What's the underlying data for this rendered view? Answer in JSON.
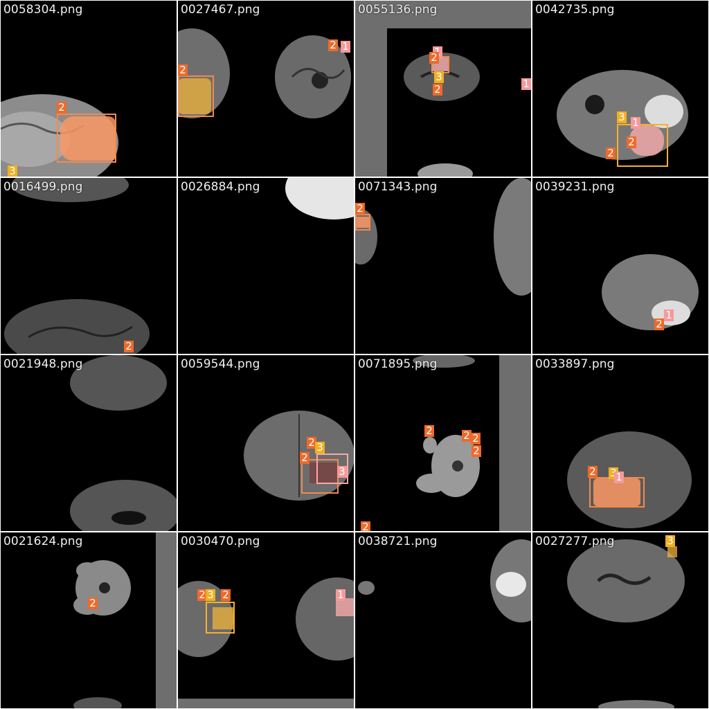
{
  "tiles": [
    {
      "filename": "0058304.png",
      "labels": [
        "2",
        "3",
        "2"
      ]
    },
    {
      "filename": "0027467.png",
      "labels": [
        "2",
        "1",
        "2"
      ]
    },
    {
      "filename": "0055136.png",
      "labels": [
        "1",
        "2",
        "3",
        "2",
        "1"
      ]
    },
    {
      "filename": "0042735.png",
      "labels": [
        "3",
        "1",
        "2",
        "2"
      ]
    },
    {
      "filename": "0016499.png",
      "labels": [
        "2"
      ]
    },
    {
      "filename": "0026884.png",
      "labels": []
    },
    {
      "filename": "0071343.png",
      "labels": [
        "2"
      ]
    },
    {
      "filename": "0039231.png",
      "labels": [
        "1",
        "2"
      ]
    },
    {
      "filename": "0021948.png",
      "labels": []
    },
    {
      "filename": "0059544.png",
      "labels": [
        "2",
        "3",
        "2",
        "3"
      ]
    },
    {
      "filename": "0071895.png",
      "labels": [
        "2",
        "2",
        "2",
        "2",
        "2"
      ]
    },
    {
      "filename": "0033897.png",
      "labels": [
        "2",
        "3",
        "1"
      ]
    },
    {
      "filename": "0021624.png",
      "labels": [
        "2"
      ]
    },
    {
      "filename": "0030470.png",
      "labels": [
        "2",
        "3",
        "2",
        "1"
      ]
    },
    {
      "filename": "0038721.png",
      "labels": []
    },
    {
      "filename": "0027277.png",
      "labels": [
        "3"
      ]
    }
  ],
  "colors": {
    "class_1": "#f49a9a",
    "class_2": "#ee6a2a",
    "class_3": "#f0b020"
  }
}
